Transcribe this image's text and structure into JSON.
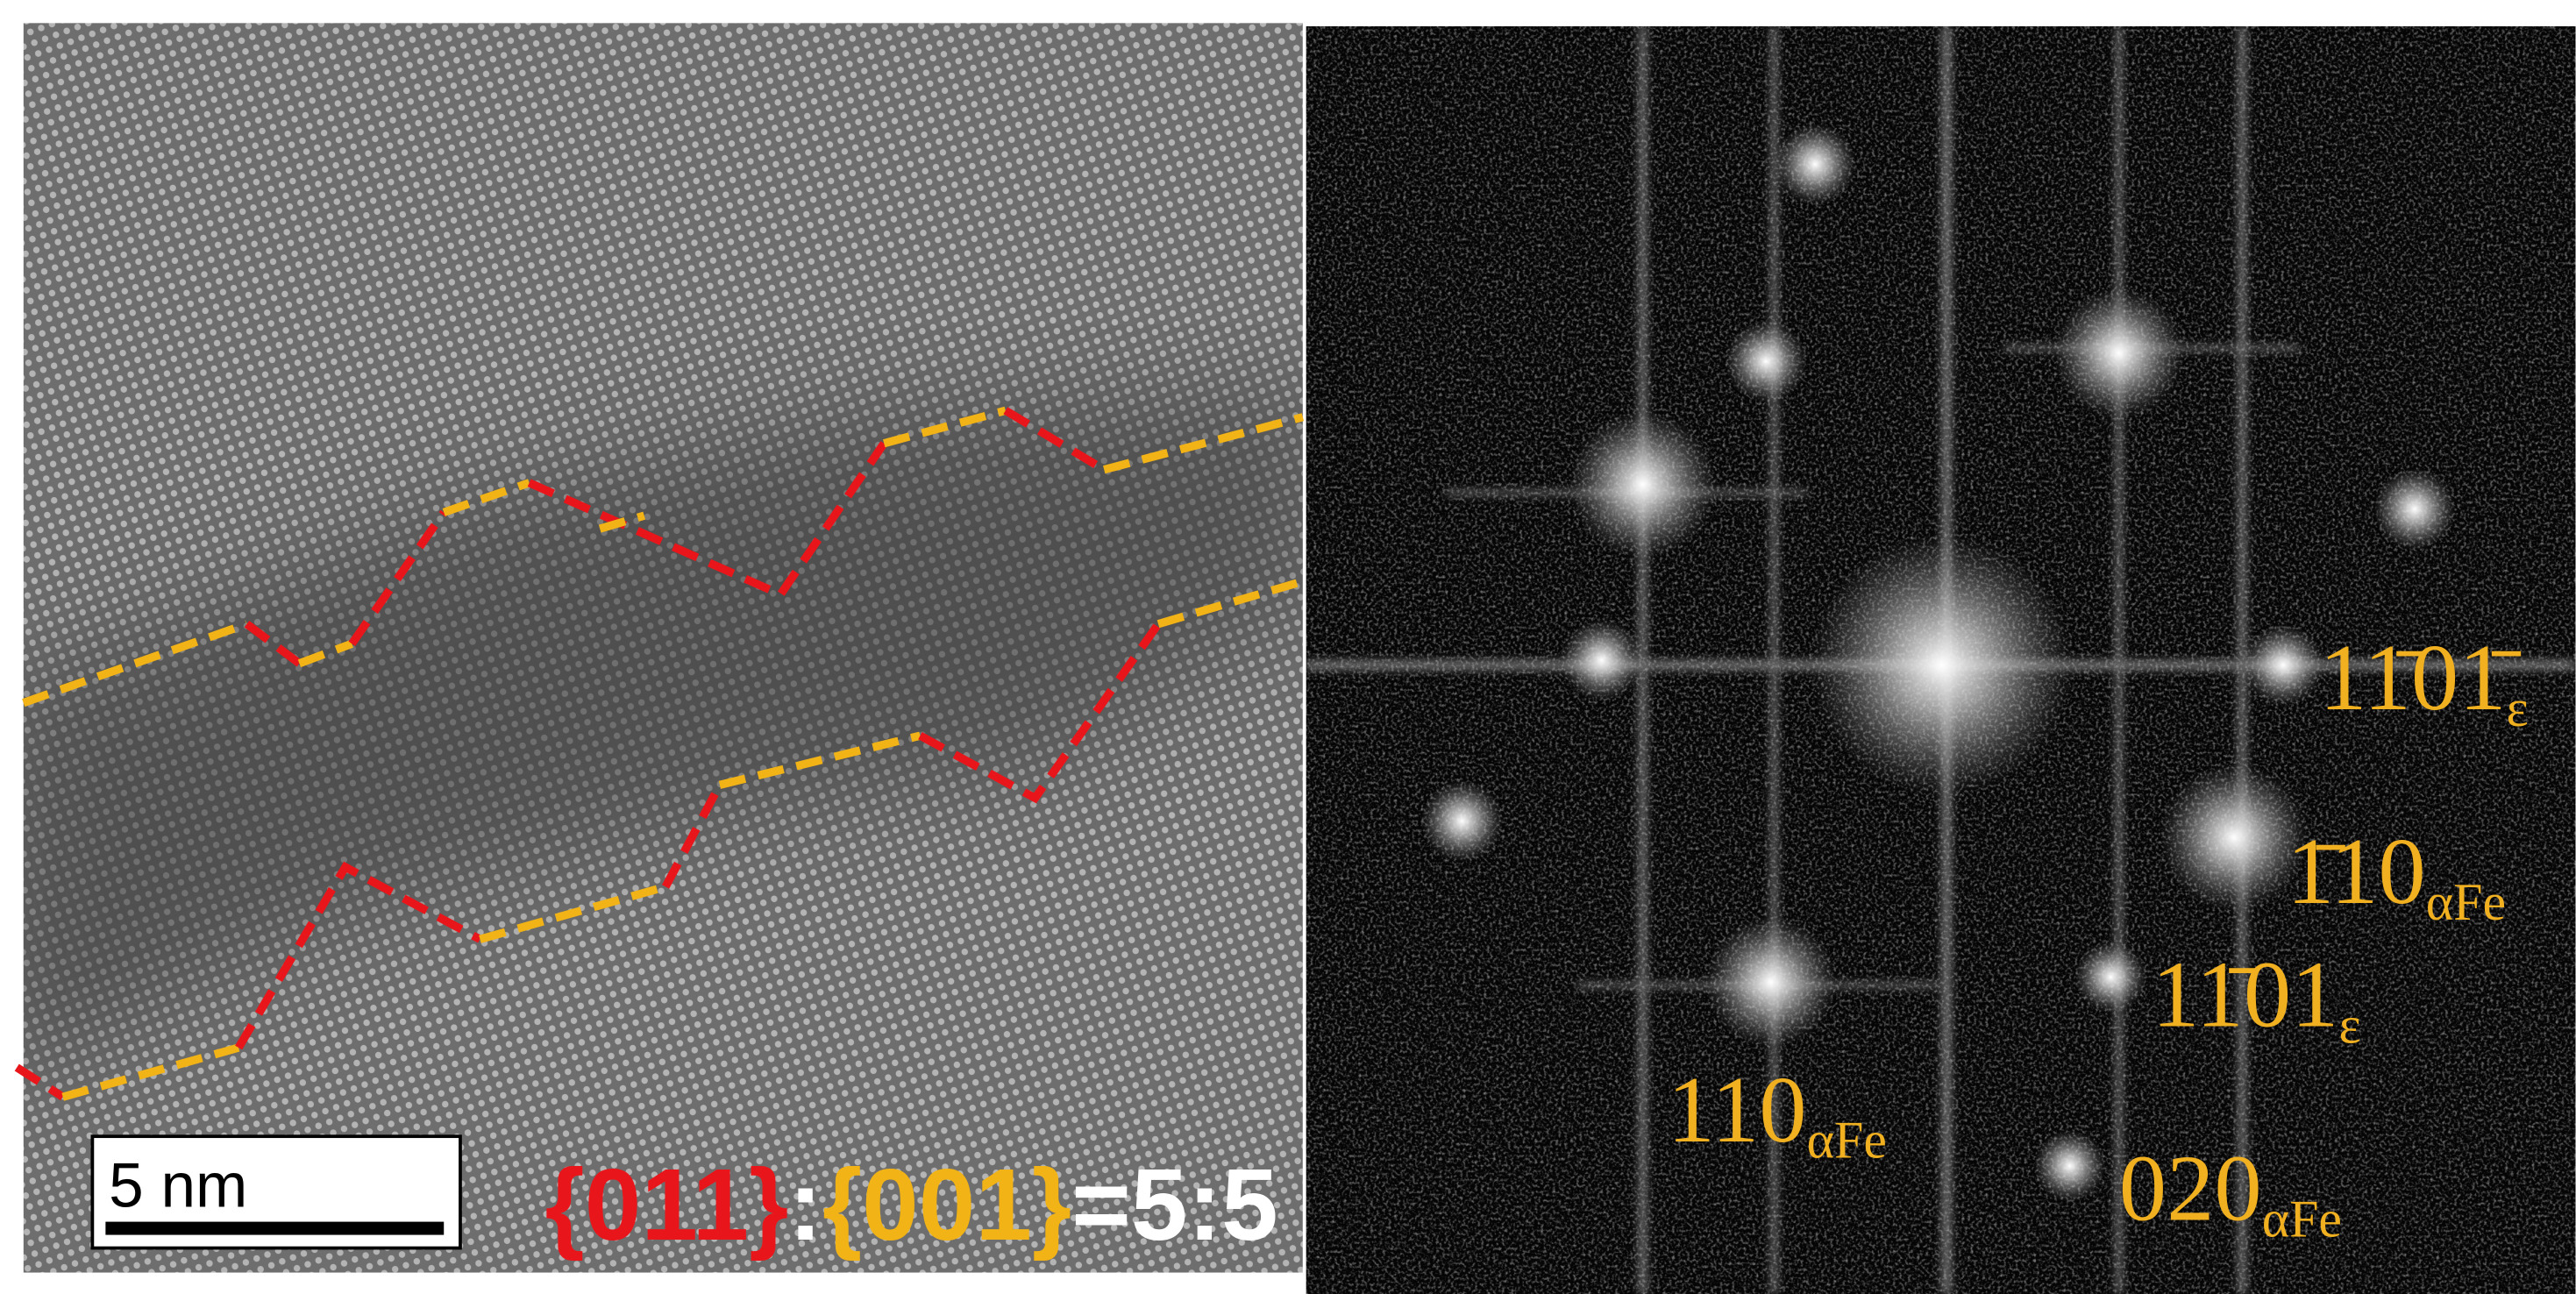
{
  "scale_bar": {
    "label": "5 nm"
  },
  "ratio_label": {
    "parts": [
      "{011}",
      ":",
      "{001}",
      "=5:5"
    ]
  },
  "fft_labels": [
    {
      "main": "11̄01̄",
      "sub": "ε"
    },
    {
      "main": "1̄10",
      "sub": "αFe"
    },
    {
      "main": "11̄01",
      "sub": "ε"
    },
    {
      "main": "110",
      "sub": "αFe"
    },
    {
      "main": "020",
      "sub": "αFe"
    }
  ]
}
